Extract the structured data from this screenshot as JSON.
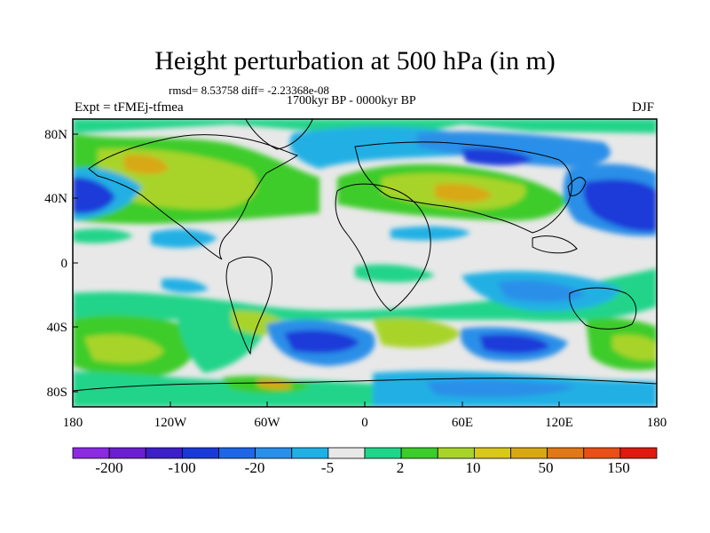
{
  "title": "Height perturbation at 500 hPa (in m)",
  "stats": "rmsd= 8.53758 diff= -2.23368e-08",
  "subtitle": "1700kyr BP - 0000kyr BP",
  "experiment": "Expt = tFMEj-tfmea",
  "season": "DJF",
  "axes": {
    "lat_ticks": [
      "80N",
      "40N",
      "0",
      "40S",
      "80S"
    ],
    "lon_ticks": [
      "180",
      "120W",
      "60W",
      "0",
      "60E",
      "120E",
      "180"
    ]
  },
  "colorbar": {
    "colors": [
      "#8a2be2",
      "#6a1fd0",
      "#3c1fc8",
      "#1a3ad8",
      "#1e66e6",
      "#2a8fe8",
      "#20b0e4",
      "#e8e8e8",
      "#20d48a",
      "#3ccc2c",
      "#a8d42a",
      "#d8c81a",
      "#d8a814",
      "#e07818",
      "#e85018",
      "#e01a10"
    ],
    "labels": [
      "-200",
      "-100",
      "-20",
      "-5",
      "2",
      "10",
      "50",
      "150"
    ]
  },
  "map_colors": {
    "background": "#e8e8e8",
    "strong_negative": "#1a3ad8",
    "negative": "#2a8fe8",
    "weak_negative": "#20b0e4",
    "weak_positive": "#20d48a",
    "positive": "#3ccc2c",
    "moderate_positive": "#a8d42a",
    "strong_positive": "#d8a814",
    "coastline": "#000000"
  }
}
